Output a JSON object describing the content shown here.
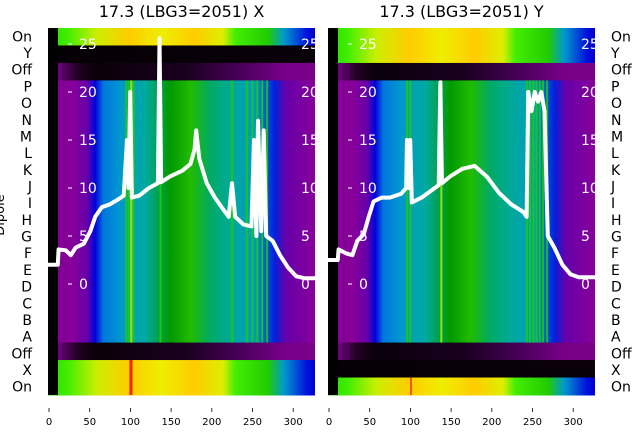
{
  "chart_data": [
    {
      "type": "heatmap",
      "title": "17.3 (LBG3=2051) X",
      "ylabel": "Dipole",
      "xlabel": "",
      "xlim": [
        0,
        328
      ],
      "xticks": [
        "0",
        "50",
        "100",
        "150",
        "200",
        "250",
        "300"
      ],
      "row_labels": [
        "On",
        "Y",
        "Off",
        "P",
        "O",
        "N",
        "M",
        "L",
        "K",
        "J",
        "I",
        "H",
        "G",
        "F",
        "E",
        "D",
        "C",
        "B",
        "A",
        "Off",
        "X",
        "On"
      ],
      "row_label_side": "left",
      "overlay_ylim": [
        -2.5,
        27.5
      ],
      "overlay_yticks": [
        "25",
        "20",
        "15",
        "10",
        "5",
        "0"
      ],
      "band_rows": {
        "top_on": "on",
        "top_y": "black",
        "top_off": "off",
        "dipoles": "dipole",
        "bottom_off": "off",
        "bottom_x": "on",
        "bottom_on": "on"
      },
      "overlay_line": [
        [
          0,
          2
        ],
        [
          12,
          2
        ],
        [
          13,
          3.6
        ],
        [
          22,
          3.5
        ],
        [
          28,
          3
        ],
        [
          34,
          3.8
        ],
        [
          44,
          4.2
        ],
        [
          52,
          5.5
        ],
        [
          58,
          7
        ],
        [
          66,
          8
        ],
        [
          76,
          8.3
        ],
        [
          86,
          8.8
        ],
        [
          93,
          9.2
        ],
        [
          97,
          15
        ],
        [
          99,
          10
        ],
        [
          101,
          20
        ],
        [
          103,
          9
        ],
        [
          112,
          9.2
        ],
        [
          124,
          10
        ],
        [
          135,
          10.5
        ],
        [
          137,
          25.6
        ],
        [
          139,
          10.6
        ],
        [
          150,
          11.2
        ],
        [
          165,
          11.8
        ],
        [
          175,
          12.5
        ],
        [
          180,
          14
        ],
        [
          182,
          16
        ],
        [
          186,
          13
        ],
        [
          195,
          10.5
        ],
        [
          205,
          9
        ],
        [
          215,
          7.8
        ],
        [
          222,
          7
        ],
        [
          226,
          10.5
        ],
        [
          230,
          7
        ],
        [
          240,
          6.2
        ],
        [
          250,
          6
        ],
        [
          253,
          15
        ],
        [
          256,
          5
        ],
        [
          258,
          17
        ],
        [
          262,
          5.5
        ],
        [
          265,
          16
        ],
        [
          268,
          5
        ],
        [
          276,
          4.5
        ],
        [
          285,
          3
        ],
        [
          295,
          1.7
        ],
        [
          305,
          0.8
        ],
        [
          315,
          0.6
        ],
        [
          328,
          0.6
        ]
      ]
    },
    {
      "type": "heatmap",
      "title": "17.3 (LBG3=2051) Y",
      "ylabel": "",
      "xlabel": "",
      "xlim": [
        0,
        328
      ],
      "xticks": [
        "0",
        "50",
        "100",
        "150",
        "200",
        "250",
        "300"
      ],
      "row_labels": [
        "On",
        "Y",
        "Off",
        "P",
        "O",
        "N",
        "M",
        "L",
        "K",
        "J",
        "I",
        "H",
        "G",
        "F",
        "E",
        "D",
        "C",
        "B",
        "A",
        "Off",
        "X",
        "On"
      ],
      "row_label_side": "right",
      "overlay_ylim": [
        -2.5,
        27.5
      ],
      "overlay_yticks": [
        "25",
        "20",
        "15",
        "10",
        "5",
        "0"
      ],
      "overlay_line": [
        [
          0,
          2.5
        ],
        [
          12,
          2.5
        ],
        [
          13,
          3.6
        ],
        [
          22,
          3.2
        ],
        [
          30,
          3
        ],
        [
          36,
          4.5
        ],
        [
          44,
          5.2
        ],
        [
          50,
          7
        ],
        [
          56,
          8.6
        ],
        [
          66,
          9
        ],
        [
          76,
          9
        ],
        [
          90,
          9.4
        ],
        [
          96,
          10
        ],
        [
          97,
          15
        ],
        [
          99,
          10
        ],
        [
          101,
          15
        ],
        [
          103,
          8.5
        ],
        [
          115,
          9
        ],
        [
          128,
          9.8
        ],
        [
          136,
          10.3
        ],
        [
          138,
          21
        ],
        [
          140,
          10.5
        ],
        [
          150,
          11.2
        ],
        [
          165,
          12
        ],
        [
          180,
          12.3
        ],
        [
          195,
          11.2
        ],
        [
          210,
          9.5
        ],
        [
          225,
          8.3
        ],
        [
          240,
          7.5
        ],
        [
          244,
          7
        ],
        [
          246,
          20
        ],
        [
          250,
          18
        ],
        [
          254,
          20
        ],
        [
          258,
          19
        ],
        [
          262,
          20
        ],
        [
          266,
          18
        ],
        [
          270,
          5
        ],
        [
          278,
          3.8
        ],
        [
          288,
          2
        ],
        [
          298,
          1
        ],
        [
          308,
          0.7
        ],
        [
          328,
          0.7
        ]
      ]
    }
  ],
  "colors": {
    "on": [
      [
        0,
        "#22dd00"
      ],
      [
        25,
        "#44ee00"
      ],
      [
        60,
        "#ccee00"
      ],
      [
        100,
        "#ffcc00"
      ],
      [
        140,
        "#eeee00"
      ],
      [
        180,
        "#ffcc00"
      ],
      [
        215,
        "#ddee00"
      ],
      [
        230,
        "#44ee00"
      ],
      [
        270,
        "#22cc00"
      ],
      [
        290,
        "#0099cc"
      ],
      [
        318,
        "#0011dd"
      ],
      [
        328,
        "#0000cc"
      ]
    ],
    "off": [
      [
        0,
        "#880099"
      ],
      [
        15,
        "#660077"
      ],
      [
        35,
        "#220022"
      ],
      [
        60,
        "#0a000a"
      ],
      [
        170,
        "#1a0020"
      ],
      [
        230,
        "#440055"
      ],
      [
        290,
        "#770088"
      ],
      [
        328,
        "#7a0088"
      ]
    ],
    "black": [
      [
        0,
        "#050005"
      ],
      [
        328,
        "#0a000a"
      ]
    ],
    "dipole": [
      [
        0,
        "#7a0090"
      ],
      [
        30,
        "#880099"
      ],
      [
        48,
        "#6600aa"
      ],
      [
        58,
        "#0000dd"
      ],
      [
        68,
        "#0077dd"
      ],
      [
        90,
        "#0099cc"
      ],
      [
        120,
        "#00aaa0"
      ],
      [
        150,
        "#009900"
      ],
      [
        175,
        "#22bb00"
      ],
      [
        200,
        "#00aa66"
      ],
      [
        225,
        "#00aa99"
      ],
      [
        255,
        "#0099cc"
      ],
      [
        278,
        "#0022dd"
      ],
      [
        292,
        "#6600aa"
      ],
      [
        328,
        "#880099"
      ]
    ]
  }
}
